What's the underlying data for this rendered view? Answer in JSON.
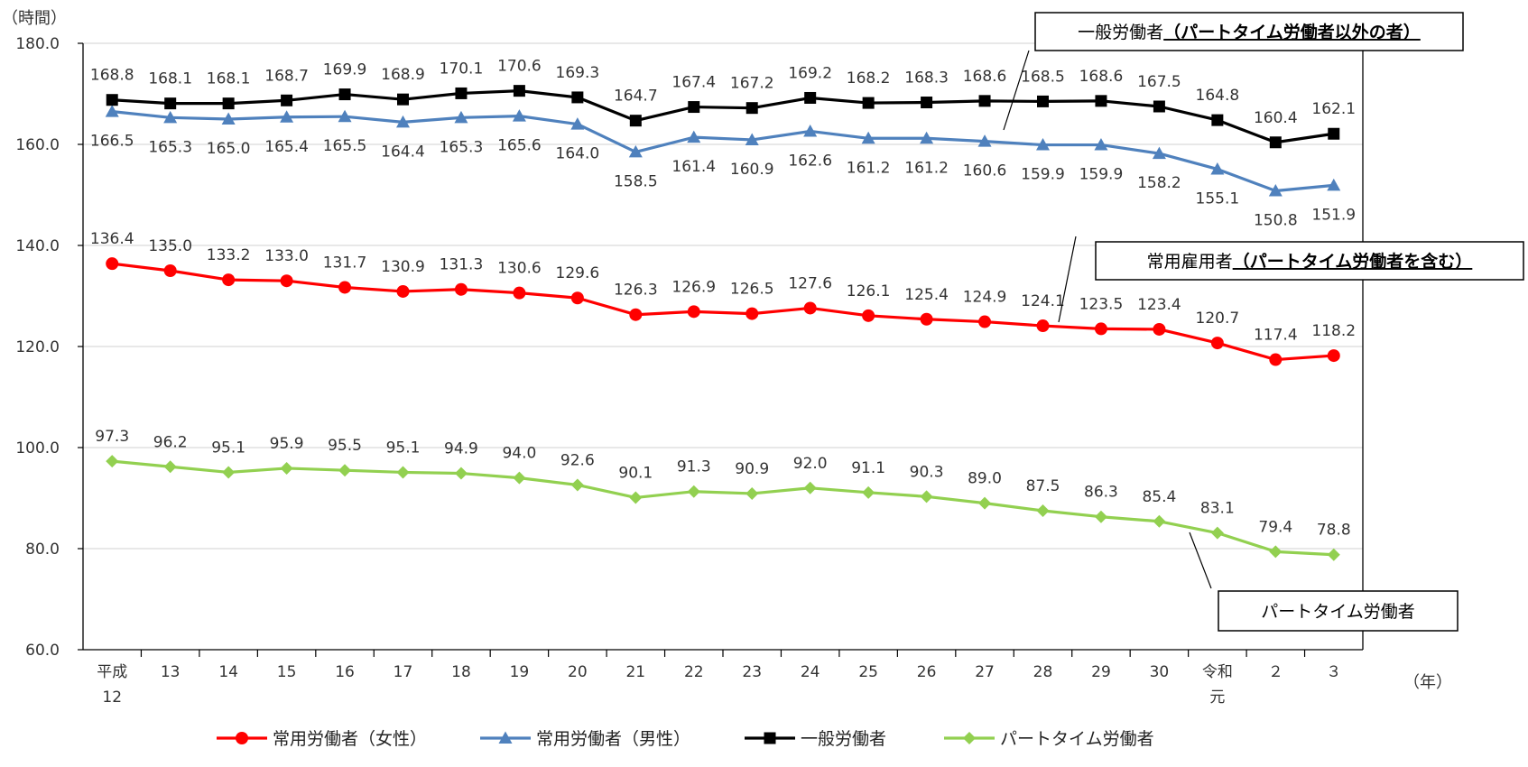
{
  "chart_data": {
    "type": "line",
    "ylabel": "（時間）",
    "xlabel": "（年）",
    "ylim": [
      60,
      180
    ],
    "yticks": [
      "60.0",
      "80.0",
      "100.0",
      "120.0",
      "140.0",
      "160.0",
      "180.0"
    ],
    "categories": [
      [
        "平成",
        "12"
      ],
      [
        "13"
      ],
      [
        "14"
      ],
      [
        "15"
      ],
      [
        "16"
      ],
      [
        "17"
      ],
      [
        "18"
      ],
      [
        "19"
      ],
      [
        "20"
      ],
      [
        "21"
      ],
      [
        "22"
      ],
      [
        "23"
      ],
      [
        "24"
      ],
      [
        "25"
      ],
      [
        "26"
      ],
      [
        "27"
      ],
      [
        "28"
      ],
      [
        "29"
      ],
      [
        "30"
      ],
      [
        "令和",
        "元"
      ],
      [
        "２"
      ],
      [
        "３"
      ]
    ],
    "grid": true,
    "legend_position": "bottom",
    "series": [
      {
        "name": "常用労働者（女性）",
        "color": "#ff0000",
        "marker": "circle",
        "values": [
          136.4,
          135.0,
          133.2,
          133.0,
          131.7,
          130.9,
          131.3,
          130.6,
          129.6,
          126.3,
          126.9,
          126.5,
          127.6,
          126.1,
          125.4,
          124.9,
          124.1,
          123.5,
          123.4,
          120.7,
          117.4,
          118.2
        ]
      },
      {
        "name": "常用労働者（男性）",
        "color": "#4f81bd",
        "marker": "triangle",
        "values": [
          166.5,
          165.3,
          165.0,
          165.4,
          165.5,
          164.4,
          165.3,
          165.6,
          164.0,
          158.5,
          161.4,
          160.9,
          162.6,
          161.2,
          161.2,
          160.6,
          159.9,
          159.9,
          158.2,
          155.1,
          150.8,
          151.9
        ]
      },
      {
        "name": "一般労働者",
        "color": "#000000",
        "marker": "square",
        "values": [
          168.8,
          168.1,
          168.1,
          168.7,
          169.9,
          168.9,
          170.1,
          170.6,
          169.3,
          164.7,
          167.4,
          167.2,
          169.2,
          168.2,
          168.3,
          168.6,
          168.5,
          168.6,
          167.5,
          164.8,
          160.4,
          162.1
        ]
      },
      {
        "name": "パートタイム労働者",
        "color": "#92d050",
        "marker": "diamond",
        "values": [
          97.3,
          96.2,
          95.1,
          95.9,
          95.5,
          95.1,
          94.9,
          94.0,
          92.6,
          90.1,
          91.3,
          90.9,
          92.0,
          91.1,
          90.3,
          89.0,
          87.5,
          86.3,
          85.4,
          83.1,
          79.4,
          78.8
        ]
      }
    ],
    "annotations": [
      {
        "prefix": "一般労働者",
        "emph": "（パートタイム労働者以外の者）"
      },
      {
        "prefix": "常用雇用者",
        "emph": "（パートタイム労働者を含む）"
      },
      {
        "prefix": "パートタイム労働者",
        "emph": ""
      }
    ]
  }
}
